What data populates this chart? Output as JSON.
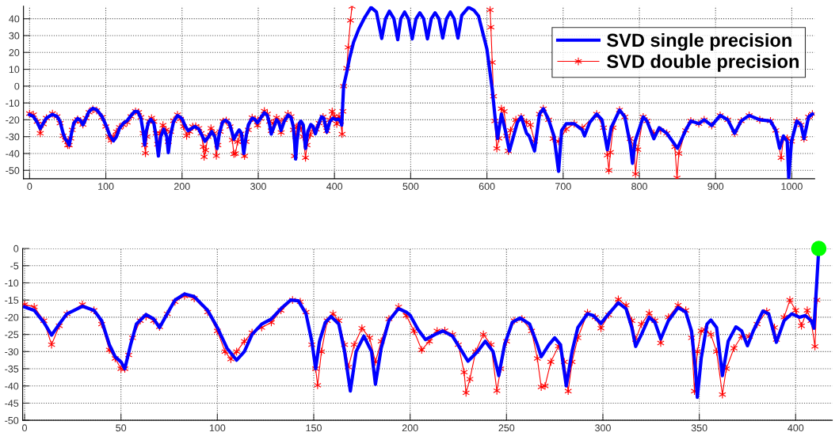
{
  "chart_data": [
    {
      "type": "line",
      "xlim": [
        -8,
        1030
      ],
      "ylim": [
        -55,
        47.5
      ],
      "xticks": [
        0,
        100,
        200,
        300,
        400,
        500,
        600,
        700,
        800,
        900,
        1000
      ],
      "yticks": [
        -50,
        -40,
        -30,
        -20,
        -10,
        0,
        10,
        20,
        30,
        40
      ],
      "grid": true,
      "legend": "top right",
      "line_style": "solid",
      "series": [
        {
          "name": "SVD single precision",
          "color": "#0000ff",
          "marker": "none",
          "x": [
            0,
            5,
            10,
            14,
            18,
            22,
            30,
            36,
            40,
            44,
            47,
            50,
            52,
            55,
            58,
            63,
            67,
            70,
            74,
            78,
            83,
            88,
            95,
            100,
            105,
            110,
            114,
            118,
            123,
            128,
            133,
            138,
            142,
            146,
            149,
            151,
            153,
            156,
            159,
            163,
            166,
            169,
            172,
            176,
            180,
            182,
            185,
            189,
            194,
            198,
            200,
            204,
            208,
            213,
            217,
            222,
            227,
            230,
            235,
            239,
            243,
            246,
            249,
            253,
            257,
            262,
            266,
            268,
            272,
            275,
            278,
            281,
            284,
            287,
            292,
            295,
            299,
            303,
            308,
            312,
            315,
            317,
            320,
            324,
            327,
            330,
            334,
            339,
            343,
            346,
            348,
            349,
            351,
            354,
            356,
            359,
            362,
            365,
            369,
            372,
            375,
            378,
            383,
            386,
            390,
            394,
            398,
            402,
            405,
            408,
            409.5,
            412,
            416,
            420,
            425,
            432,
            440,
            448,
            455,
            462,
            467,
            472,
            478,
            483,
            487,
            492,
            497,
            502,
            507,
            512,
            517,
            522,
            527,
            532,
            537,
            542,
            547,
            552,
            557,
            562,
            567,
            576,
            583,
            589,
            600,
            607,
            611,
            614,
            619,
            624,
            629.5,
            640,
            645,
            652,
            655.5,
            662.5,
            669,
            674,
            681,
            688,
            694,
            698,
            704,
            714.5,
            725,
            728,
            735,
            744,
            751,
            758,
            763,
            774,
            781,
            788,
            791,
            794.4,
            805,
            810,
            819,
            826,
            836,
            850,
            860.6,
            867.5,
            878,
            885,
            895,
            906,
            916,
            925,
            933.6,
            944,
            958,
            972,
            979,
            984,
            989,
            994,
            996,
            999.6,
            1006.6,
            1012,
            1016,
            1022,
            1027
          ],
          "values": [
            -17,
            -18,
            -21.5,
            -25.2,
            -22,
            -19,
            -16.8,
            -18,
            -21,
            -28,
            -31.5,
            -33,
            -35,
            -28,
            -22,
            -19.2,
            -20.5,
            -23,
            -19,
            -15,
            -13.2,
            -14,
            -18,
            -23,
            -29,
            -32.5,
            -30,
            -25,
            -22,
            -20.5,
            -17.5,
            -15,
            -15.2,
            -19,
            -27,
            -35,
            -27,
            -21.5,
            -19.8,
            -22,
            -30,
            -41.5,
            -30,
            -25.5,
            -30,
            -39.5,
            -29,
            -21,
            -17.5,
            -18.5,
            -19.4,
            -23.5,
            -26.5,
            -25,
            -24,
            -25.5,
            -30,
            -32.8,
            -30,
            -27,
            -30,
            -37,
            -28,
            -21.5,
            -20.2,
            -22,
            -28,
            -31.5,
            -28,
            -26,
            -28,
            -40,
            -30,
            -23,
            -19,
            -19.5,
            -21.8,
            -19,
            -15.8,
            -17.5,
            -23,
            -28.5,
            -25,
            -20,
            -21.5,
            -26.3,
            -21,
            -17.2,
            -18.5,
            -24,
            -35,
            -43.3,
            -32,
            -22,
            -20.8,
            -23,
            -37,
            -27,
            -22.8,
            -24,
            -28.3,
            -24,
            -18.2,
            -19,
            -27.3,
            -21,
            -19,
            -20,
            -19.5,
            -21,
            -23.2,
            0,
            8,
            17,
            26,
            34,
            41,
            46.7,
            44,
            28.3,
            40,
            44.5,
            40,
            27.6,
            40,
            44,
            40,
            28,
            40,
            43.5,
            40,
            28,
            40,
            43.5,
            40,
            28.5,
            40,
            44,
            40,
            28.5,
            42,
            46.8,
            45,
            41.6,
            22,
            -2,
            -20,
            -31,
            -16.6,
            -26,
            -38.5,
            -21.5,
            -18.3,
            -28,
            -29.6,
            -38.5,
            -16.6,
            -13.4,
            -20,
            -29.6,
            -50.6,
            -26.3,
            -22.3,
            -22.3,
            -26,
            -29.6,
            -21.5,
            -16.6,
            -20,
            -37.7,
            -24.7,
            -14.2,
            -18.3,
            -34.4,
            -45.8,
            -32.8,
            -18.3,
            -20.7,
            -31.2,
            -24.7,
            -28,
            -36.9,
            -26.3,
            -20.7,
            -22.3,
            -20,
            -23.4,
            -17.4,
            -20,
            -28,
            -20.7,
            -17.4,
            -20,
            -20.7,
            -26.3,
            -36.9,
            -29.6,
            -32.8,
            -54.5,
            -32.8,
            -20.7,
            -23,
            -31.2,
            -18.3,
            -16.6
          ]
        },
        {
          "name": "SVD double precision",
          "color": "#ff0000",
          "marker": "cross",
          "x": [
            0,
            5,
            10,
            14,
            18,
            22,
            30,
            36,
            40,
            44,
            47,
            50,
            52,
            54,
            56,
            60,
            63,
            67,
            70,
            74,
            78,
            83,
            88,
            95,
            100,
            104,
            107,
            110,
            114,
            118,
            123,
            128,
            133,
            139,
            143,
            146,
            149,
            151,
            152,
            154,
            157,
            160,
            163,
            166,
            168,
            171,
            175,
            179,
            182,
            185,
            189,
            194,
            198,
            202,
            206,
            210,
            214,
            218,
            222,
            225,
            228,
            229,
            231,
            234,
            238,
            242,
            245,
            247,
            250,
            254,
            258,
            263,
            266,
            268,
            270,
            273,
            277,
            280,
            282,
            284,
            287,
            292,
            296,
            299,
            303,
            308,
            312,
            315,
            317,
            320,
            324,
            327,
            330,
            334,
            339,
            343,
            346,
            347.5,
            349,
            351,
            353,
            356,
            359,
            362,
            364,
            368,
            372,
            376,
            380,
            385,
            389,
            390,
            394,
            397,
            400,
            403,
            406,
            408,
            410,
            411,
            412,
            416.2,
            418,
            421,
            423,
            425,
            600,
            604.2,
            605.2,
            607,
            608.7,
            610.4,
            613,
            615.7,
            619,
            622.6,
            626,
            628,
            631,
            638,
            645,
            652,
            657,
            662.5,
            669,
            674,
            681,
            686.8,
            694,
            704,
            714.5,
            725,
            744,
            753,
            758,
            760,
            762,
            765.5,
            774,
            781,
            788,
            793,
            795,
            797.9,
            805,
            810,
            819,
            828,
            836,
            846.6,
            849.4,
            851.8,
            860.6,
            867.5,
            878,
            885,
            895,
            906,
            916,
            925,
            933.6,
            944,
            958,
            972,
            979,
            986,
            989,
            994,
            999.6,
            1006.6,
            1012,
            1016,
            1022,
            1027
          ],
          "values": [
            -16.3,
            -17,
            -21,
            -28,
            -22.5,
            -19,
            -16.3,
            -18,
            -22,
            -29.5,
            -32,
            -35,
            -35,
            -31,
            -26,
            -21,
            -19.8,
            -21,
            -22.8,
            -19,
            -15.5,
            -13.8,
            -14.5,
            -18.5,
            -24,
            -30,
            -32.2,
            -30,
            -27,
            -24.5,
            -23,
            -21.5,
            -18,
            -15,
            -15.5,
            -18.5,
            -28,
            -35,
            -39.8,
            -30,
            -21,
            -19,
            -21,
            -28,
            -34.5,
            -28,
            -23.2,
            -26,
            -33,
            -27,
            -20.5,
            -17,
            -19.5,
            -24,
            -29.5,
            -27,
            -24,
            -23.9,
            -25,
            -28,
            -36,
            -42,
            -38,
            -30,
            -25,
            -28,
            -41.4,
            -35,
            -27,
            -21,
            -20.5,
            -24,
            -32,
            -40.3,
            -40,
            -33,
            -28.4,
            -33,
            -41.5,
            -33,
            -26,
            -18.7,
            -20,
            -23.2,
            -19.3,
            -14.8,
            -16.5,
            -21,
            -26.5,
            -22,
            -18.8,
            -21,
            -27.5,
            -20,
            -16.5,
            -18,
            -26,
            -41.5,
            -30,
            -24,
            -23.6,
            -25,
            -30,
            -42.5,
            -35,
            -29,
            -25.5,
            -25.6,
            -22,
            -18.3,
            -23,
            -26.5,
            -20,
            -15,
            -18,
            -22.5,
            -18,
            -21,
            -28.5,
            -15,
            0,
            10.6,
            23,
            39,
            47.3,
            null,
            null,
            45.2,
            35,
            14,
            -6,
            -20.7,
            -37,
            -31,
            -13.4,
            -15,
            -29.6,
            -38.5,
            -26.3,
            -20,
            -18.3,
            -21.5,
            -23,
            -32.8,
            -16.6,
            -13.4,
            -20,
            -31.2,
            -32.8,
            -25.5,
            -22.3,
            -24.7,
            -16.6,
            -24.7,
            -41,
            -50,
            -39.3,
            -24.7,
            -14.2,
            -18.3,
            -31.2,
            -36,
            -52.2,
            -37.7,
            -18.3,
            -20.7,
            -28,
            -26.3,
            -28,
            -36,
            -54.5,
            -40,
            -26.3,
            -20.7,
            -22.3,
            -20,
            -23.4,
            -17.4,
            -20,
            -28,
            -20.7,
            -17.4,
            -20,
            -20.7,
            -26.3,
            -42.5,
            -31,
            -31,
            -32.8,
            -20.7,
            -23,
            -31.2,
            -18.3,
            -16.6
          ]
        }
      ]
    },
    {
      "type": "line",
      "xlim": [
        -1,
        419
      ],
      "ylim": [
        -50,
        0
      ],
      "xticks": [
        0,
        50,
        100,
        150,
        200,
        250,
        300,
        350,
        400
      ],
      "yticks": [
        -50,
        -45,
        -40,
        -35,
        -30,
        -25,
        -20,
        -15,
        -10,
        -5,
        0
      ],
      "grid": true,
      "line_style": "solid",
      "series": [
        {
          "color": "#0000ff",
          "marker": "none",
          "x": [
            0,
            5,
            10,
            14,
            18,
            22,
            30,
            36,
            40,
            44,
            47,
            50,
            52,
            55,
            58,
            63,
            67,
            70,
            74,
            78,
            83,
            88,
            95,
            100,
            105,
            110,
            114,
            118,
            123,
            128,
            133,
            138,
            142,
            146,
            149,
            151,
            153,
            156,
            159,
            163,
            166,
            169,
            172,
            176,
            180,
            182,
            185,
            189,
            194,
            198,
            200,
            204,
            208,
            213,
            217,
            222,
            227,
            230,
            235,
            239,
            243,
            246,
            249,
            253,
            257,
            262,
            266,
            268,
            272,
            275,
            278,
            281,
            284,
            287,
            292,
            295,
            299,
            303,
            308,
            312,
            315,
            317,
            320,
            324,
            327,
            330,
            334,
            339,
            343,
            346,
            348,
            349,
            351,
            354,
            356,
            359,
            362,
            365,
            369,
            372,
            375,
            378,
            383,
            386,
            390,
            394,
            398,
            402,
            405,
            408,
            409.5,
            412
          ],
          "values": [
            -17,
            -18,
            -21.5,
            -25.2,
            -22,
            -19,
            -16.8,
            -18,
            -21,
            -28,
            -31.5,
            -33,
            -35,
            -28,
            -22,
            -19.2,
            -20.5,
            -23,
            -19,
            -15,
            -13.2,
            -14,
            -18,
            -23,
            -29,
            -32.5,
            -30,
            -25,
            -22,
            -20.5,
            -17.5,
            -15,
            -15.2,
            -19,
            -27,
            -35,
            -27,
            -21.5,
            -19.8,
            -22,
            -30,
            -41.5,
            -30,
            -25.5,
            -30,
            -39.5,
            -29,
            -21,
            -17.5,
            -18.5,
            -19.4,
            -23.5,
            -26.5,
            -25,
            -24,
            -25.5,
            -30,
            -32.8,
            -30,
            -27,
            -30,
            -37,
            -28,
            -21.5,
            -20.2,
            -22,
            -28,
            -31.5,
            -28,
            -26,
            -28,
            -40,
            -30,
            -23,
            -19,
            -19.5,
            -21.8,
            -19,
            -15.8,
            -17.5,
            -23,
            -28.5,
            -25,
            -20,
            -21.5,
            -26.3,
            -21,
            -17.2,
            -18.5,
            -24,
            -35,
            -43.3,
            -32,
            -22,
            -20.8,
            -23,
            -37,
            -27,
            -22.8,
            -24,
            -28.3,
            -24,
            -18.2,
            -19,
            -27.3,
            -21,
            -19,
            -20,
            -19.5,
            -21,
            -23.2,
            0
          ]
        },
        {
          "color": "#ff0000",
          "marker": "cross",
          "x": [
            0,
            5,
            10,
            14,
            18,
            22,
            30,
            36,
            40,
            44,
            47,
            50,
            52,
            54,
            56,
            60,
            63,
            67,
            70,
            74,
            78,
            83,
            88,
            95,
            100,
            104,
            107,
            110,
            114,
            118,
            123,
            128,
            133,
            139,
            143,
            146,
            149,
            151,
            152,
            154,
            157,
            160,
            163,
            166,
            168,
            171,
            175,
            179,
            182,
            185,
            189,
            194,
            198,
            202,
            206,
            210,
            214,
            218,
            222,
            225,
            228,
            229,
            231,
            234,
            238,
            242,
            245,
            247,
            250,
            254,
            258,
            263,
            266,
            268,
            270,
            273,
            277,
            280,
            282,
            284,
            287,
            292,
            296,
            299,
            303,
            308,
            312,
            315,
            317,
            320,
            324,
            327,
            330,
            334,
            339,
            343,
            346,
            347.5,
            349,
            351,
            353,
            356,
            359,
            362,
            364,
            368,
            372,
            376,
            380,
            385,
            389,
            390,
            394,
            397,
            400,
            403,
            406,
            408,
            410,
            411,
            412
          ],
          "values": [
            -16.3,
            -17,
            -21,
            -28,
            -22.5,
            -19,
            -16.3,
            -18,
            -22,
            -29.5,
            -32,
            -35,
            -35,
            -31,
            -26,
            -21,
            -19.8,
            -21,
            -22.8,
            -19,
            -15.5,
            -13.8,
            -14.5,
            -18.5,
            -24,
            -30,
            -32.2,
            -30,
            -27,
            -24.5,
            -23,
            -21.5,
            -18,
            -15,
            -15.5,
            -18.5,
            -28,
            -35,
            -39.8,
            -30,
            -21,
            -19,
            -21,
            -28,
            -34.5,
            -28,
            -23.2,
            -26,
            -33,
            -27,
            -20.5,
            -17,
            -19.5,
            -24,
            -29.5,
            -27,
            -24,
            -23.9,
            -25,
            -28,
            -36,
            -42,
            -38,
            -30,
            -25,
            -28,
            -41.4,
            -35,
            -27,
            -21,
            -20.5,
            -24,
            -32,
            -40.3,
            -40,
            -33,
            -28.4,
            -33,
            -41.5,
            -33,
            -26,
            -18.7,
            -20,
            -23.2,
            -19.3,
            -14.8,
            -16.5,
            -21,
            -26.5,
            -22,
            -18.8,
            -21,
            -27.5,
            -20,
            -16.5,
            -18,
            -26,
            -41.5,
            -30,
            -24,
            -23.6,
            -25,
            -30,
            -42.5,
            -35,
            -29,
            -25.5,
            -25.6,
            -22,
            -18.3,
            -23,
            -26.5,
            -20,
            -15,
            -18,
            -22.5,
            -18,
            -21,
            -28.5,
            -15,
            0
          ]
        },
        {
          "type": "scatter",
          "color": "#00ff00",
          "x": [
            412
          ],
          "values": [
            0
          ]
        }
      ]
    }
  ]
}
